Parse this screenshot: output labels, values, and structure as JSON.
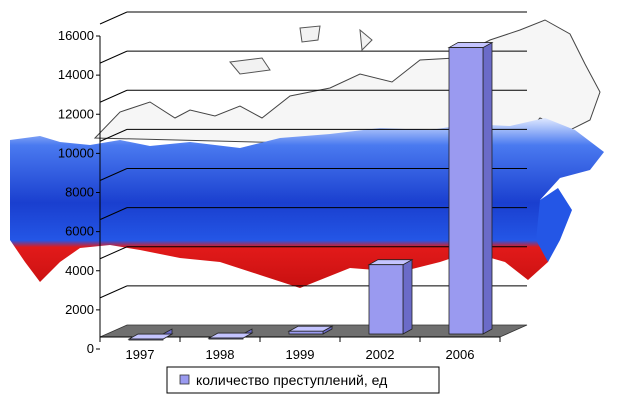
{
  "chart_data": {
    "type": "bar",
    "categories": [
      "1997",
      "1998",
      "1999",
      "2002",
      "2006"
    ],
    "series": [
      {
        "name": "количество преступлений, ед",
        "values": [
          100,
          150,
          500,
          3900,
          15000
        ]
      }
    ],
    "ylim": [
      0,
      16000
    ],
    "yticks": [
      "0",
      "2000",
      "4000",
      "6000",
      "8000",
      "10000",
      "12000",
      "14000",
      "16000"
    ],
    "grid": true,
    "legend_position": "bottom",
    "background": "map of Russia in flag colors",
    "colors": {
      "bar_front": "#9a9af0",
      "bar_side": "#6b6bc8",
      "bar_top": "#c4c4ff",
      "floor": "#6f6f6f",
      "flag_white": "#ffffff",
      "flag_blue": "#1e4fd8",
      "flag_red": "#e01818"
    }
  }
}
